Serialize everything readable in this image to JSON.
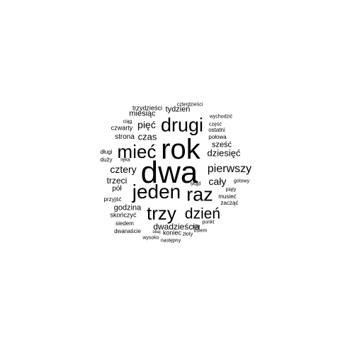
{
  "cloud": {
    "text_color": "#000000",
    "background": "#ffffff",
    "words": [
      "dwa",
      "rok",
      "jeden",
      "drugi",
      "raz",
      "trzy",
      "mieć",
      "dzień",
      "pierwszy",
      "cztery",
      "cały",
      "pięć",
      "dziesięć",
      "czas",
      "trzeci",
      "dwadzieścia",
      "tydzień",
      "miesiąc",
      "sześć",
      "godzina",
      "strona",
      "pół",
      "czwarty",
      "trzydzieści",
      "skończyć",
      "połowa",
      "ostatni",
      "siedem",
      "przyjść",
      "czterdzieści",
      "wychodzić",
      "część",
      "ciąg",
      "długi",
      "duży",
      "ręka",
      "skąd",
      "gotowy",
      "piąty",
      "musieć",
      "zacząć",
      "punkt",
      "sto",
      "dwanaście",
      "koniec",
      "osiem",
      "obaj",
      "wysoko",
      "złoty",
      "następny"
    ]
  }
}
